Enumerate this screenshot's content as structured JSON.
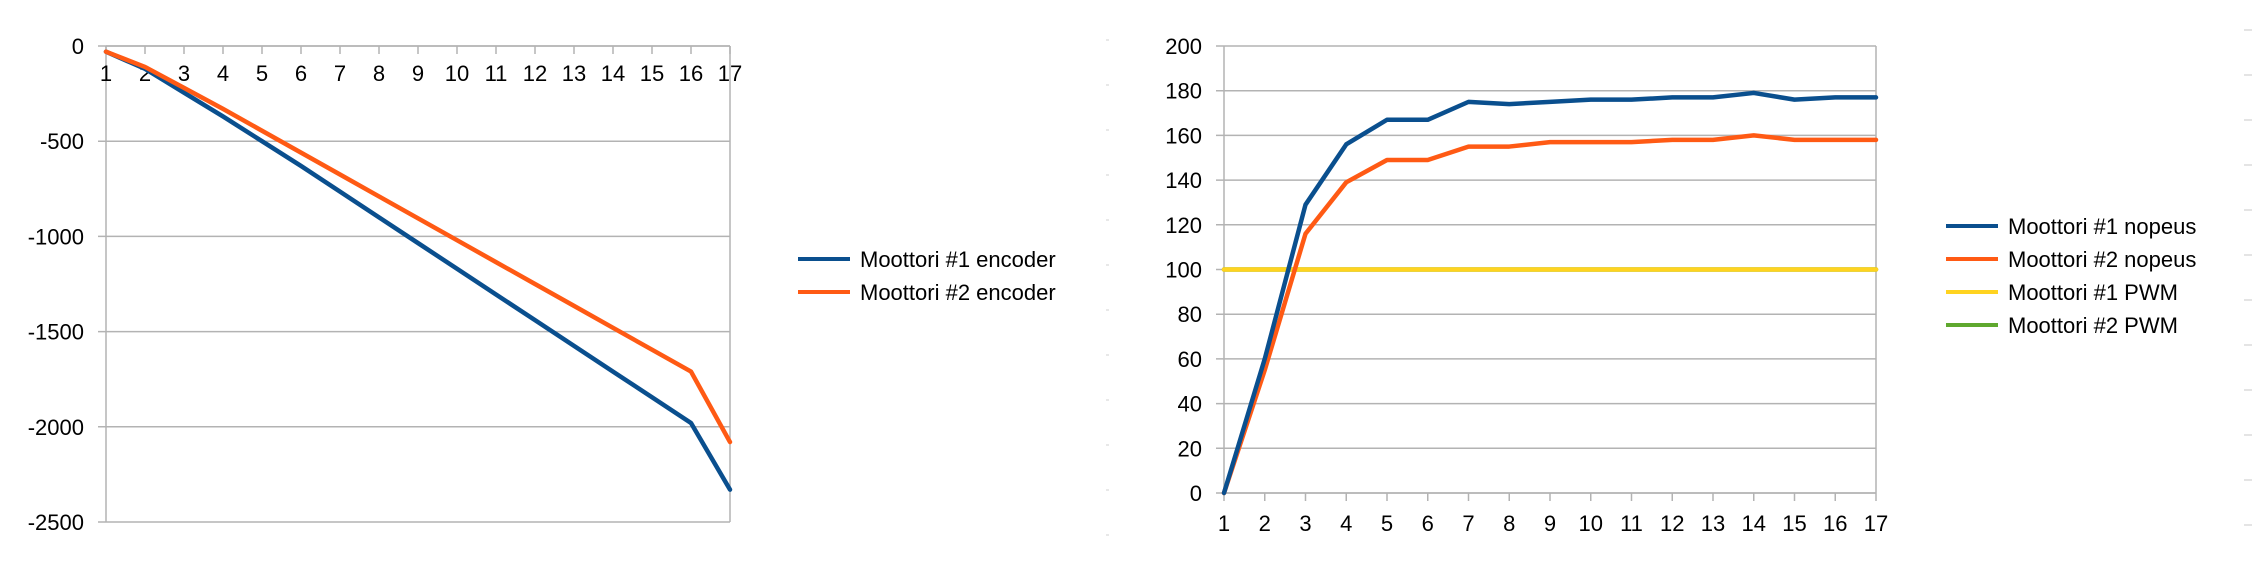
{
  "chart_data": [
    {
      "type": "line",
      "title": "",
      "xlabel": "",
      "ylabel": "",
      "categories": [
        "1",
        "2",
        "3",
        "4",
        "5",
        "6",
        "7",
        "8",
        "9",
        "10",
        "11",
        "12",
        "13",
        "14",
        "15",
        "16",
        "17"
      ],
      "ylim": [
        -2500,
        0
      ],
      "yticks": [
        "0",
        "-500",
        "-1000",
        "-1500",
        "-2000",
        "-2500"
      ],
      "grid": true,
      "legend_position": "right",
      "series": [
        {
          "name": "Moottori #1 encoder",
          "color": "#0a4f8e",
          "values": [
            -30,
            -120,
            -245,
            -370,
            -500,
            -630,
            -765,
            -900,
            -1035,
            -1170,
            -1305,
            -1440,
            -1575,
            -1710,
            -1845,
            -1980,
            -2330
          ]
        },
        {
          "name": "Moottori #2 encoder",
          "color": "#ff5a14",
          "values": [
            -30,
            -110,
            -220,
            -330,
            -445,
            -560,
            -675,
            -790,
            -905,
            -1020,
            -1135,
            -1250,
            -1365,
            -1480,
            -1595,
            -1710,
            -2080
          ]
        }
      ]
    },
    {
      "type": "line",
      "title": "",
      "xlabel": "",
      "ylabel": "",
      "categories": [
        "1",
        "2",
        "3",
        "4",
        "5",
        "6",
        "7",
        "8",
        "9",
        "10",
        "11",
        "12",
        "13",
        "14",
        "15",
        "16",
        "17"
      ],
      "ylim": [
        0,
        200
      ],
      "yticks": [
        "200",
        "180",
        "160",
        "140",
        "120",
        "100",
        "80",
        "60",
        "40",
        "20",
        "0"
      ],
      "grid": true,
      "legend_position": "right",
      "series": [
        {
          "name": "Moottori #1 nopeus",
          "color": "#0a4f8e",
          "values": [
            0,
            60,
            129,
            156,
            167,
            167,
            175,
            174,
            175,
            176,
            176,
            177,
            177,
            179,
            176,
            177,
            177
          ]
        },
        {
          "name": "Moottori #2 nopeus",
          "color": "#ff5a14",
          "values": [
            0,
            55,
            116,
            139,
            149,
            149,
            155,
            155,
            157,
            157,
            157,
            158,
            158,
            160,
            158,
            158,
            158
          ]
        },
        {
          "name": "Moottori #1 PWM",
          "color": "#ffd320",
          "values": [
            100,
            100,
            100,
            100,
            100,
            100,
            100,
            100,
            100,
            100,
            100,
            100,
            100,
            100,
            100,
            100,
            100
          ]
        },
        {
          "name": "Moottori #2 PWM",
          "color": "#5fa82e",
          "values": [
            100,
            100,
            100,
            100,
            100,
            100,
            100,
            100,
            100,
            100,
            100,
            100,
            100,
            100,
            100,
            100,
            100
          ]
        }
      ]
    }
  ]
}
